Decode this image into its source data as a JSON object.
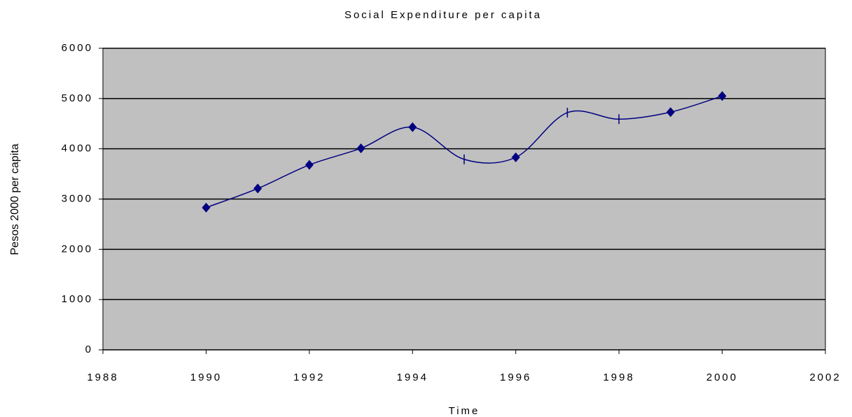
{
  "chart_data": {
    "type": "line",
    "title": "Social Expenditure per capita",
    "x_label": "Time",
    "y_label": "Pesos 2000 per capita",
    "x": [
      1990,
      1991,
      1992,
      1993,
      1994,
      1995,
      1996,
      1997,
      1998,
      1999,
      2000
    ],
    "series": [
      {
        "color": "#000080",
        "values": [
          2830,
          3210,
          3680,
          4010,
          4430,
          3790,
          3830,
          4720,
          4590,
          4730,
          5050
        ],
        "markers": [
          "diamond",
          "diamond",
          "diamond",
          "diamond",
          "diamond",
          "dash",
          "diamond",
          "dash",
          "dash",
          "diamond",
          "diamond"
        ]
      }
    ],
    "xlim": [
      1988,
      2002
    ],
    "xticks": [
      1988,
      1990,
      1992,
      1994,
      1996,
      1998,
      2000,
      2002
    ],
    "ylim": [
      0,
      6000
    ],
    "yticks": [
      0,
      1000,
      2000,
      3000,
      4000,
      5000,
      6000
    ],
    "grid": true,
    "smooth": true,
    "plot_background": "#c0c0c0"
  }
}
